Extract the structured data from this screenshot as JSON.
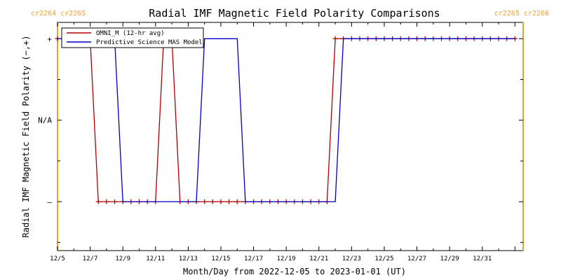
{
  "chart_data": {
    "type": "line",
    "title": "Radial IMF Magnetic Field Polarity Comparisons",
    "xlabel": "Month/Day from 2022-12-05 to 2023-01-01 (UT)",
    "ylabel": "Radial IMF Magnetic Field Polarity (−,+)",
    "xlim": [
      "2022-12-05T00:00",
      "2023-01-02T12:00"
    ],
    "ylim": [
      -1.6,
      1.2
    ],
    "x_ticks": [
      "2022-12-05",
      "2022-12-07",
      "2022-12-09",
      "2022-12-11",
      "2022-12-13",
      "2022-12-15",
      "2022-12-17",
      "2022-12-19",
      "2022-12-21",
      "2022-12-23",
      "2022-12-25",
      "2022-12-27",
      "2022-12-29",
      "2022-12-31"
    ],
    "x_tick_labels": [
      "12/5",
      "12/7",
      "12/9",
      "12/11",
      "12/13",
      "12/15",
      "12/17",
      "12/19",
      "12/21",
      "12/23",
      "12/25",
      "12/27",
      "12/29",
      "12/31"
    ],
    "y_ticks": [
      1,
      0,
      -1
    ],
    "y_tick_labels": [
      "+",
      "N/A",
      "–"
    ],
    "grid": false,
    "legend": {
      "placement": "top-left"
    },
    "carrington_markers": [
      {
        "x": "2022-12-05T00:00",
        "label": "cr2264 cr2265",
        "color": "#f0a030",
        "label_side": "left"
      },
      {
        "x": "2023-01-02T12:00",
        "label": "cr2265 cr2266",
        "color": "#f0a030",
        "label_side": "right"
      }
    ],
    "series": [
      {
        "name": "OMNI_M (12-hr avg)",
        "color": "#b00000",
        "marker": "plus",
        "x": [
          "2022-12-05T00:00",
          "2022-12-05T12:00",
          "2022-12-06T00:00",
          "2022-12-06T12:00",
          "2022-12-07T00:00",
          "2022-12-07T12:00",
          "2022-12-08T00:00",
          "2022-12-08T12:00",
          "2022-12-09T00:00",
          "2022-12-09T12:00",
          "2022-12-10T00:00",
          "2022-12-10T12:00",
          "2022-12-11T00:00",
          "2022-12-11T12:00",
          "2022-12-12T00:00",
          "2022-12-12T12:00",
          "2022-12-13T00:00",
          "2022-12-13T12:00",
          "2022-12-14T00:00",
          "2022-12-14T12:00",
          "2022-12-15T00:00",
          "2022-12-15T12:00",
          "2022-12-16T00:00",
          "2022-12-16T12:00",
          "2022-12-17T00:00",
          "2022-12-17T12:00",
          "2022-12-18T00:00",
          "2022-12-18T12:00",
          "2022-12-19T00:00",
          "2022-12-19T12:00",
          "2022-12-20T00:00",
          "2022-12-20T12:00",
          "2022-12-21T00:00",
          "2022-12-21T12:00",
          "2022-12-22T00:00",
          "2022-12-22T12:00",
          "2022-12-23T00:00",
          "2022-12-23T12:00",
          "2022-12-24T00:00",
          "2022-12-24T12:00",
          "2022-12-25T00:00",
          "2022-12-25T12:00",
          "2022-12-26T00:00",
          "2022-12-26T12:00",
          "2022-12-27T00:00",
          "2022-12-27T12:00",
          "2022-12-28T00:00",
          "2022-12-28T12:00",
          "2022-12-29T00:00",
          "2022-12-29T12:00",
          "2022-12-30T00:00",
          "2022-12-30T12:00",
          "2022-12-31T00:00",
          "2022-12-31T12:00",
          "2023-01-01T00:00",
          "2023-01-01T12:00",
          "2023-01-02T00:00"
        ],
        "y": [
          1,
          1,
          1,
          1,
          1,
          -1,
          -1,
          -1,
          -1,
          -1,
          -1,
          -1,
          -1,
          1,
          1,
          -1,
          -1,
          -1,
          -1,
          -1,
          -1,
          -1,
          -1,
          -1,
          -1,
          -1,
          -1,
          -1,
          -1,
          -1,
          -1,
          -1,
          -1,
          -1,
          1,
          1,
          1,
          1,
          1,
          1,
          1,
          1,
          1,
          1,
          1,
          1,
          1,
          1,
          1,
          1,
          1,
          1,
          1,
          1,
          1,
          1,
          1
        ]
      },
      {
        "name": "Predictive Science MAS Model",
        "color": "#0000c0",
        "marker": "none",
        "x": [
          "2022-12-05T00:00",
          "2022-12-08T12:00",
          "2022-12-09T00:00",
          "2022-12-13T12:00",
          "2022-12-14T00:00",
          "2022-12-16T00:00",
          "2022-12-16T12:00",
          "2022-12-22T00:00",
          "2022-12-22T12:00",
          "2023-01-02T00:00"
        ],
        "y": [
          1,
          1,
          -1,
          -1,
          1,
          1,
          -1,
          -1,
          1,
          1
        ]
      }
    ]
  }
}
